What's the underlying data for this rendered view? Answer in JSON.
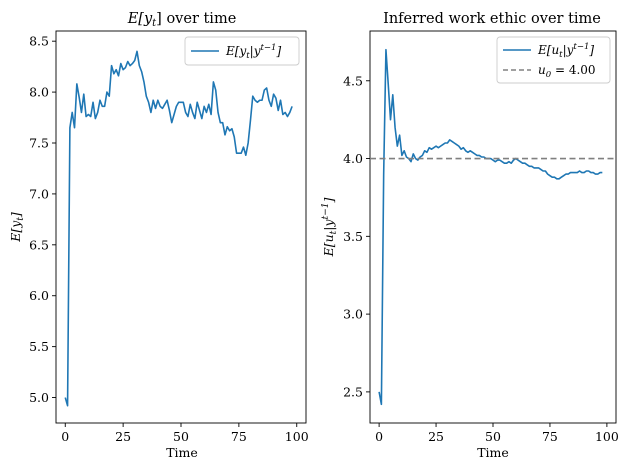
{
  "chart_data": [
    {
      "type": "line",
      "title": "E[yt] over time",
      "title_parts": [
        "E[y",
        "t",
        "] over time"
      ],
      "xlabel": "Time",
      "ylabel": "E[yt]",
      "ylabel_parts": [
        "E[y",
        "t",
        "]"
      ],
      "xlim": [
        -4,
        104
      ],
      "ylim": [
        4.75,
        8.6
      ],
      "xticks": [
        0,
        25,
        50,
        75,
        100
      ],
      "yticks": [
        5.0,
        5.5,
        6.0,
        6.5,
        7.0,
        7.5,
        8.0,
        8.5
      ],
      "ytick_labels": [
        "5.0",
        "5.5",
        "6.0",
        "6.5",
        "7.0",
        "7.5",
        "8.0",
        "8.5"
      ],
      "grid": false,
      "legend": "top-right",
      "series": [
        {
          "name": "E[yt|yt-1]",
          "label_parts": [
            "E[y",
            "t",
            "|y",
            "t−1",
            "]"
          ],
          "color": "#1f77b4",
          "x": [
            0,
            1,
            2,
            3,
            4,
            5,
            6,
            7,
            8,
            9,
            10,
            11,
            12,
            13,
            14,
            15,
            16,
            17,
            18,
            19,
            20,
            21,
            22,
            23,
            24,
            25,
            26,
            27,
            28,
            29,
            30,
            31,
            32,
            33,
            34,
            35,
            36,
            37,
            38,
            39,
            40,
            41,
            42,
            43,
            44,
            45,
            46,
            47,
            48,
            49,
            50,
            51,
            52,
            53,
            54,
            55,
            56,
            57,
            58,
            59,
            60,
            61,
            62,
            63,
            64,
            65,
            66,
            67,
            68,
            69,
            70,
            71,
            72,
            73,
            74,
            75,
            76,
            77,
            78,
            79,
            80,
            81,
            82,
            83,
            84,
            85,
            86,
            87,
            88,
            89,
            90,
            91,
            92,
            93,
            94,
            95,
            96,
            97,
            98
          ],
          "y": [
            5.0,
            4.92,
            7.65,
            7.8,
            7.65,
            8.08,
            7.95,
            7.8,
            7.98,
            7.76,
            7.78,
            7.76,
            7.9,
            7.74,
            7.8,
            7.92,
            7.86,
            7.86,
            8.0,
            7.96,
            8.26,
            8.18,
            8.22,
            8.16,
            8.28,
            8.22,
            8.24,
            8.3,
            8.26,
            8.28,
            8.31,
            8.4,
            8.26,
            8.2,
            8.1,
            7.96,
            7.9,
            7.8,
            7.92,
            7.84,
            7.92,
            7.86,
            7.84,
            7.88,
            7.92,
            7.82,
            7.7,
            7.78,
            7.86,
            7.9,
            7.9,
            7.9,
            7.8,
            7.76,
            7.88,
            7.8,
            7.74,
            7.9,
            7.82,
            7.74,
            7.86,
            7.8,
            7.88,
            7.78,
            8.1,
            8.02,
            7.8,
            7.7,
            7.7,
            7.58,
            7.66,
            7.62,
            7.64,
            7.56,
            7.4,
            7.4,
            7.4,
            7.46,
            7.38,
            7.5,
            7.72,
            7.96,
            7.92,
            7.9,
            7.92,
            7.92,
            8.02,
            8.04,
            7.92,
            7.86,
            7.98,
            7.94,
            7.82,
            7.92,
            7.78,
            7.8,
            7.76,
            7.8,
            7.86
          ]
        }
      ]
    },
    {
      "type": "line",
      "title": "Inferred work ethic over time",
      "xlabel": "Time",
      "ylabel": "E[ut|yt-1]",
      "ylabel_parts": [
        "E[u",
        "t",
        "|y",
        "t−1",
        "]"
      ],
      "xlim": [
        -4,
        104
      ],
      "ylim": [
        2.3,
        4.82
      ],
      "xticks": [
        0,
        25,
        50,
        75,
        100
      ],
      "yticks": [
        2.5,
        3.0,
        3.5,
        4.0,
        4.5
      ],
      "ytick_labels": [
        "2.5",
        "3.0",
        "3.5",
        "4.0",
        "4.5"
      ],
      "grid": false,
      "legend": "top-right",
      "series": [
        {
          "name": "E[ut|yt-1]",
          "label_parts": [
            "E[u",
            "t",
            "|y",
            "t−1",
            "]"
          ],
          "color": "#1f77b4",
          "style": "solid",
          "x": [
            0,
            1,
            2,
            3,
            4,
            5,
            6,
            7,
            8,
            9,
            10,
            11,
            12,
            13,
            14,
            15,
            16,
            17,
            18,
            19,
            20,
            21,
            22,
            23,
            24,
            25,
            26,
            27,
            28,
            29,
            30,
            31,
            32,
            33,
            34,
            35,
            36,
            37,
            38,
            39,
            40,
            41,
            42,
            43,
            44,
            45,
            46,
            47,
            48,
            49,
            50,
            51,
            52,
            53,
            54,
            55,
            56,
            57,
            58,
            59,
            60,
            61,
            62,
            63,
            64,
            65,
            66,
            67,
            68,
            69,
            70,
            71,
            72,
            73,
            74,
            75,
            76,
            77,
            78,
            79,
            80,
            81,
            82,
            83,
            84,
            85,
            86,
            87,
            88,
            89,
            90,
            91,
            92,
            93,
            94,
            95,
            96,
            97,
            98
          ],
          "y": [
            2.5,
            2.42,
            3.9,
            4.7,
            4.48,
            4.25,
            4.41,
            4.2,
            4.08,
            4.15,
            4.02,
            4.05,
            4.01,
            4.0,
            3.98,
            4.03,
            4.0,
            3.99,
            4.01,
            4.02,
            4.05,
            4.04,
            4.07,
            4.06,
            4.07,
            4.08,
            4.07,
            4.08,
            4.09,
            4.1,
            4.1,
            4.12,
            4.11,
            4.1,
            4.09,
            4.08,
            4.06,
            4.07,
            4.05,
            4.04,
            4.05,
            4.04,
            4.03,
            4.02,
            4.02,
            4.01,
            4.01,
            4.0,
            4.0,
            4.0,
            3.99,
            3.98,
            3.99,
            3.99,
            3.98,
            3.97,
            3.97,
            3.98,
            3.97,
            3.99,
            4.0,
            3.99,
            3.98,
            3.97,
            3.97,
            3.96,
            3.95,
            3.95,
            3.94,
            3.94,
            3.94,
            3.93,
            3.92,
            3.92,
            3.9,
            3.89,
            3.88,
            3.88,
            3.87,
            3.87,
            3.88,
            3.89,
            3.9,
            3.9,
            3.91,
            3.91,
            3.91,
            3.91,
            3.92,
            3.91,
            3.91,
            3.92,
            3.92,
            3.91,
            3.91,
            3.9,
            3.9,
            3.91,
            3.91
          ]
        },
        {
          "name": "u0 = 4.00",
          "label_parts": [
            "u",
            "0",
            " = 4.00"
          ],
          "color": "#808080",
          "style": "dashed",
          "hline": 4.0
        }
      ]
    }
  ]
}
